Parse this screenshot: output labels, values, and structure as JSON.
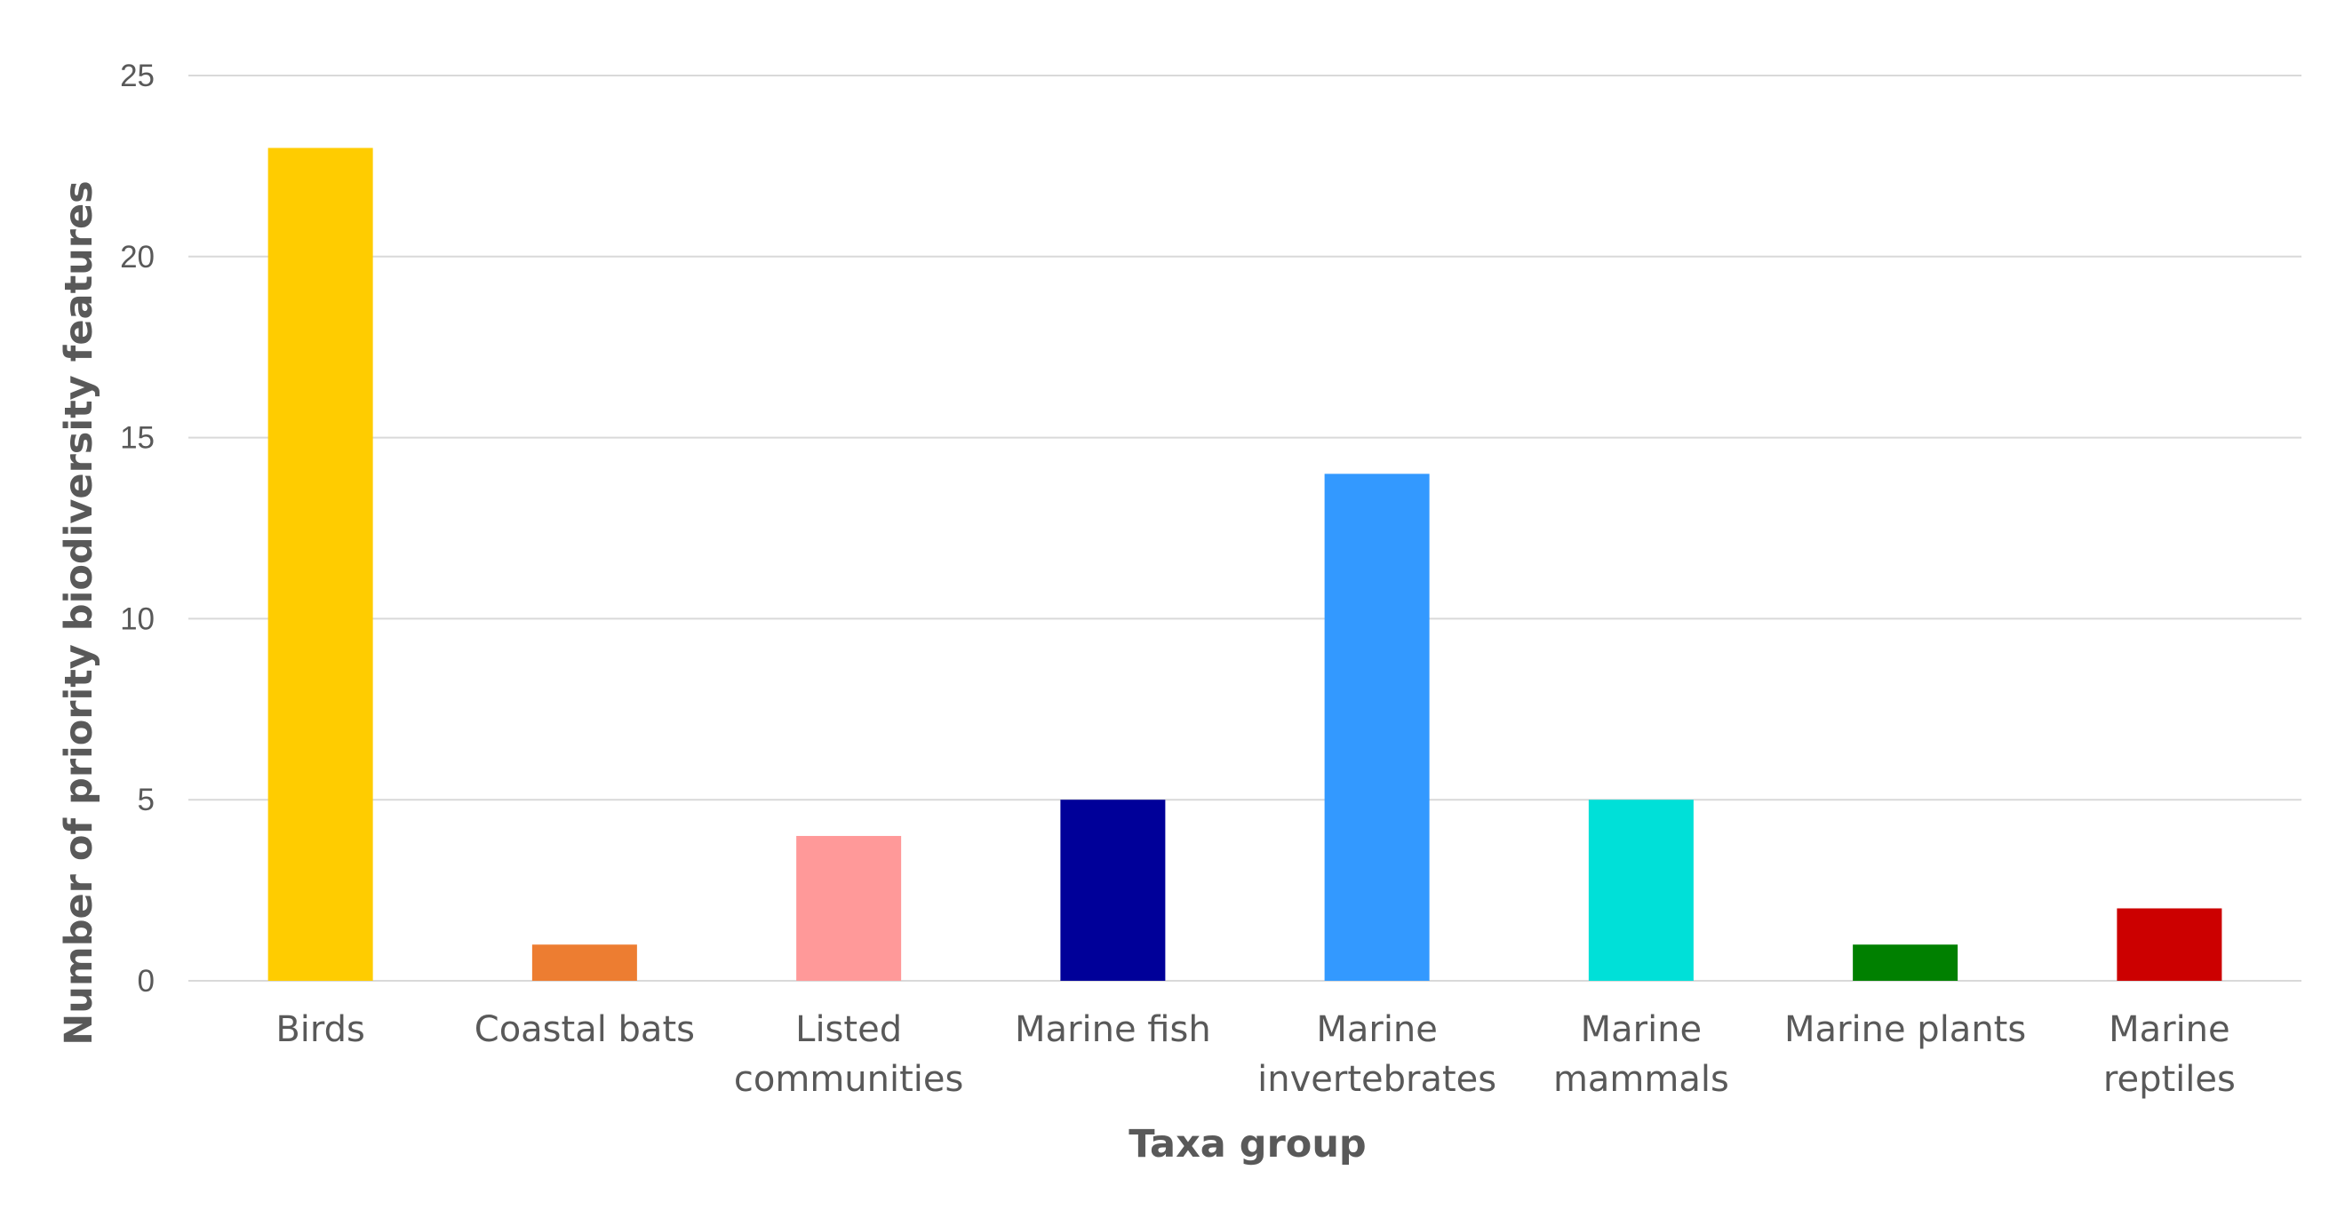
{
  "chart_data": {
    "type": "bar",
    "xlabel": "Taxa group",
    "ylabel": "Number of priority biodiversity features",
    "ylim": [
      0,
      25
    ],
    "yticks": [
      0,
      5,
      10,
      15,
      20,
      25
    ],
    "grid": true,
    "legend": "none",
    "categories": [
      [
        "Birds"
      ],
      [
        "Coastal bats"
      ],
      [
        "Listed",
        "communities"
      ],
      [
        "Marine fish"
      ],
      [
        "Marine",
        "invertebrates"
      ],
      [
        "Marine",
        "mammals"
      ],
      [
        "Marine plants"
      ],
      [
        "Marine",
        "reptiles"
      ]
    ],
    "values": [
      23,
      1,
      4,
      5,
      14,
      5,
      1,
      2
    ],
    "colors": [
      "#ffcc00",
      "#ed7d31",
      "#ff9999",
      "#000099",
      "#3399ff",
      "#00e0d8",
      "#008000",
      "#cc0000"
    ]
  }
}
